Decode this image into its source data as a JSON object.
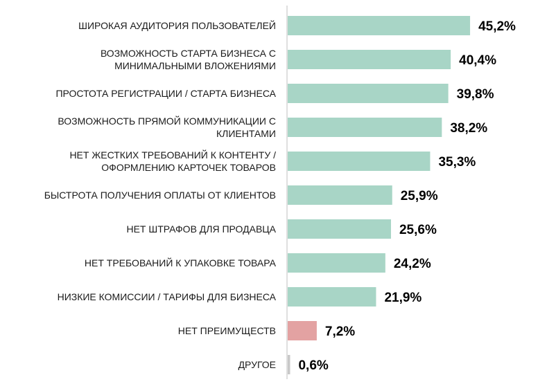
{
  "chart_data": {
    "type": "bar",
    "orientation": "horizontal",
    "categories": [
      [
        "ШИРОКАЯ АУДИТОРИЯ ПОЛЬЗОВАТЕЛЕЙ"
      ],
      [
        "ВОЗМОЖНОСТЬ СТАРТА БИЗНЕСА С",
        "МИНИМАЛЬНЫМИ ВЛОЖЕНИЯМИ"
      ],
      [
        "ПРОСТОТА РЕГИСТРАЦИИ / СТАРТА БИЗНЕСА"
      ],
      [
        "ВОЗМОЖНОСТЬ ПРЯМОЙ КОММУНИКАЦИИ С",
        "КЛИЕНТАМИ"
      ],
      [
        "НЕТ ЖЕСТКИХ ТРЕБОВАНИЙ К КОНТЕНТУ /",
        "ОФОРМЛЕНИЮ КАРТОЧЕК ТОВАРОВ"
      ],
      [
        "БЫСТРОТА ПОЛУЧЕНИЯ ОПЛАТЫ ОТ КЛИЕНТОВ"
      ],
      [
        "НЕТ ШТРАФОВ ДЛЯ ПРОДАВЦА"
      ],
      [
        "НЕТ ТРЕБОВАНИЙ К УПАКОВКЕ ТОВАРА"
      ],
      [
        "НИЗКИЕ КОМИССИИ / ТАРИФЫ ДЛЯ БИЗНЕСА"
      ],
      [
        "НЕТ ПРЕИМУЩЕСТВ"
      ],
      [
        "ДРУГОЕ"
      ]
    ],
    "values": [
      45.2,
      40.4,
      39.8,
      38.2,
      35.3,
      25.9,
      25.6,
      24.2,
      21.9,
      7.2,
      0.6
    ],
    "value_labels": [
      "45,2%",
      "40,4%",
      "39,8%",
      "38,2%",
      "35,3%",
      "25,9%",
      "25,6%",
      "24,2%",
      "21,9%",
      "7,2%",
      "0,6%"
    ],
    "unit": "%",
    "colors": {
      "default_bar": "#a8d5c6",
      "no_advantages_bar": "#e3a2a2",
      "other_bar": "#c8c8c8",
      "axis": "#bfbfbf"
    },
    "bar_color_keys": [
      "default_bar",
      "default_bar",
      "default_bar",
      "default_bar",
      "default_bar",
      "default_bar",
      "default_bar",
      "default_bar",
      "default_bar",
      "no_advantages_bar",
      "other_bar"
    ],
    "grid": false,
    "legend": "none"
  }
}
